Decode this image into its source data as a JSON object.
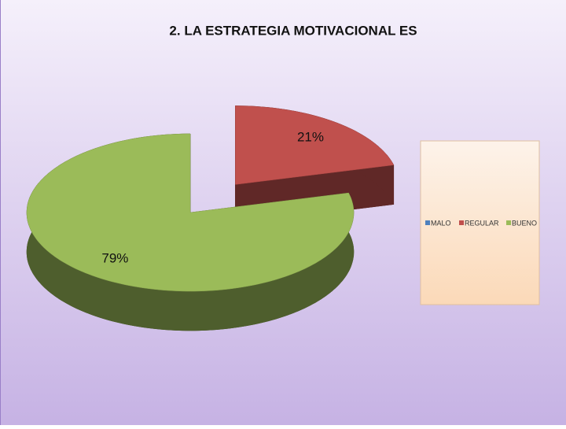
{
  "chart_data": {
    "type": "pie3d",
    "title": "2. LA ESTRATEGIA MOTIVACIONAL ES",
    "categories": [
      "MALO",
      "REGULAR",
      "BUENO"
    ],
    "values": [
      0,
      21,
      79
    ],
    "value_labels": [
      null,
      "21%",
      "79%"
    ],
    "colors": [
      "#4f81bd",
      "#c0504d",
      "#9bbb59"
    ],
    "legend": "right"
  }
}
